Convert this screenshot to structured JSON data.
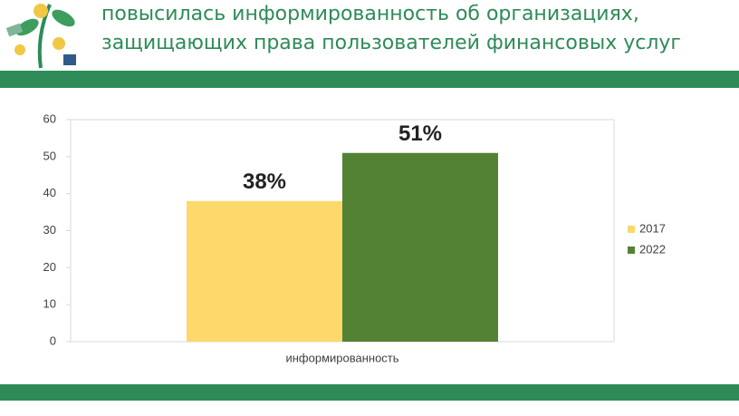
{
  "header": {
    "title_lines": [
      "повысилась информированность об организациях,",
      "защищающих права пользователей финансовых услуг"
    ]
  },
  "chart_data": {
    "type": "bar",
    "categories": [
      "информированность"
    ],
    "series": [
      {
        "name": "2017",
        "color": "#fcd96a",
        "values": [
          38
        ],
        "value_labels": [
          "38%"
        ]
      },
      {
        "name": "2022",
        "color": "#548235",
        "values": [
          51
        ],
        "value_labels": [
          "51%"
        ]
      }
    ],
    "ylim": [
      0,
      60
    ],
    "yticks": [
      0,
      10,
      20,
      30,
      40,
      50,
      60
    ],
    "grid": false,
    "legend": "right"
  }
}
